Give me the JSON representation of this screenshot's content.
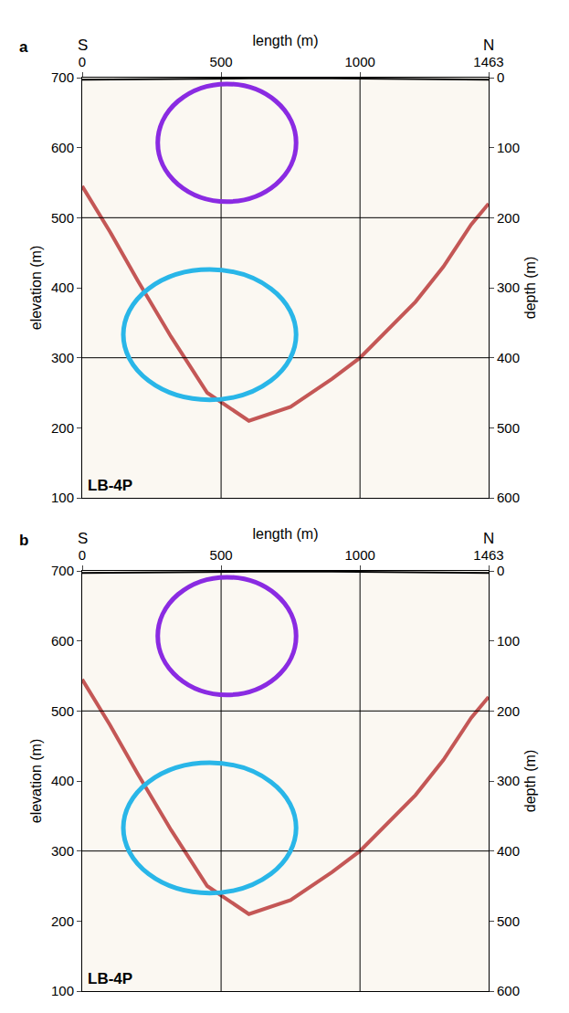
{
  "chart_data": {
    "type": "seismic_section",
    "line_name": "LB-4P",
    "direction_labels": {
      "left": "S",
      "right": "N"
    },
    "panels": [
      {
        "label": "a"
      },
      {
        "label": "b"
      }
    ],
    "x_axis": {
      "title": "length (m)",
      "lim": [
        0,
        1463
      ],
      "ticks": [
        0,
        500,
        1000,
        1463
      ]
    },
    "y_axis": {
      "title": "elevation (m)",
      "lim": [
        100,
        700
      ],
      "ticks": [
        100,
        200,
        300,
        400,
        500,
        600,
        700
      ]
    },
    "y2_axis": {
      "title": "depth (m)",
      "lim": [
        600,
        0
      ],
      "ticks": [
        0,
        100,
        200,
        300,
        400,
        500,
        600
      ]
    },
    "grid_lines": {
      "x": [
        500,
        1000
      ],
      "y": [
        300,
        500
      ]
    },
    "surface": {
      "color": "#000000",
      "x": [
        0,
        300,
        600,
        900,
        1200,
        1463
      ],
      "y": [
        697,
        698,
        699,
        699,
        698,
        697
      ]
    },
    "bedrock_reflector": {
      "color": "#b22222",
      "x": [
        0,
        100,
        200,
        320,
        450,
        600,
        750,
        900,
        1000,
        1100,
        1200,
        1300,
        1400,
        1463
      ],
      "y": [
        545,
        480,
        410,
        330,
        250,
        210,
        230,
        270,
        300,
        340,
        380,
        430,
        490,
        520
      ]
    },
    "highlights": [
      {
        "color": "#8a2be2",
        "x": [
          272,
          770
        ],
        "y": [
          523,
          691
        ]
      },
      {
        "color": "#29b6e8",
        "x": [
          148,
          770
        ],
        "y": [
          240,
          426
        ]
      }
    ]
  }
}
